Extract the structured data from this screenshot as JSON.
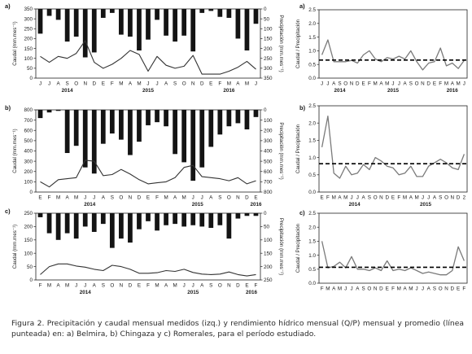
{
  "caption": "Figura 2. Precipitación y caudal mensual medidos (izq.) y rendimiento hídrico mensual (Q/P) mensual y promedio (línea punteada) en: a) Belmira, b) Chingaza y c) Romerales, para el período estudiado.",
  "chart_data": [
    {
      "id": "a-left",
      "type": "bar+line",
      "panel_label": "a)",
      "ylabel": "Caudal (mm.mes⁻¹)",
      "y2label": "Precipitación (mm.mes⁻¹)",
      "ylim": [
        0,
        350
      ],
      "yticks": [
        "0",
        "50",
        "100",
        "150",
        "200",
        "250",
        "300",
        "350"
      ],
      "y2lim": [
        350,
        0
      ],
      "y2ticks": [
        "350",
        "300",
        "250",
        "200",
        "150",
        "100",
        "50",
        "0"
      ],
      "months": [
        "J",
        "J",
        "A",
        "S",
        "O",
        "N",
        "D",
        "E",
        "F",
        "M",
        "A",
        "M",
        "J",
        "J",
        "A",
        "S",
        "O",
        "N",
        "D",
        "E",
        "F",
        "M",
        "A",
        "M",
        "J"
      ],
      "years": [
        {
          "label": "2014",
          "center": 3
        },
        {
          "label": "2015",
          "center": 12
        },
        {
          "label": "2016",
          "center": 21
        }
      ],
      "series": [
        {
          "kind": "bar",
          "values": [
            125,
            35,
            55,
            165,
            140,
            245,
            220,
            45,
            20,
            130,
            140,
            210,
            155,
            55,
            135,
            165,
            135,
            215,
            20,
            10,
            40,
            45,
            150,
            210,
            75
          ]
        },
        {
          "kind": "line",
          "values": [
            110,
            80,
            110,
            100,
            125,
            190,
            80,
            50,
            70,
            100,
            140,
            120,
            35,
            110,
            65,
            50,
            60,
            115,
            20,
            20,
            20,
            35,
            55,
            85,
            45
          ]
        }
      ]
    },
    {
      "id": "a-right",
      "type": "line",
      "panel_label": "a)",
      "ylabel": "Caudal / Precipitación",
      "ylim": [
        0,
        2.5
      ],
      "yticks": [
        "0.0",
        "0.5",
        "1.0",
        "1.5",
        "2.0",
        "2.5"
      ],
      "months": [
        "J",
        "J",
        "A",
        "S",
        "O",
        "N",
        "D",
        "E",
        "F",
        "M",
        "A",
        "M",
        "J",
        "J",
        "A",
        "S",
        "O",
        "N",
        "D",
        "E",
        "F",
        "M",
        "A",
        "M",
        "J"
      ],
      "years": [
        {
          "label": "2014",
          "center": 3
        },
        {
          "label": "2015",
          "center": 12
        },
        {
          "label": "2016",
          "center": 22
        }
      ],
      "mean": 0.66,
      "series": [
        {
          "kind": "line",
          "values": [
            0.85,
            1.4,
            0.6,
            0.6,
            0.6,
            0.65,
            0.55,
            0.85,
            1.0,
            0.7,
            0.6,
            0.75,
            0.7,
            0.8,
            0.7,
            1.0,
            0.6,
            0.3,
            0.55,
            0.6,
            1.1,
            0.45,
            0.55,
            0.35,
            0.65
          ]
        }
      ]
    },
    {
      "id": "b-left",
      "type": "bar+line",
      "panel_label": "b)",
      "ylabel": "Caudal (mm.mes⁻¹)",
      "y2label": "Precipitación (mm.mes⁻¹)",
      "ylim": [
        0,
        800
      ],
      "yticks": [
        "0",
        "100",
        "200",
        "300",
        "400",
        "500",
        "600",
        "700",
        "800"
      ],
      "y2lim": [
        800,
        0
      ],
      "y2ticks": [
        "800",
        "700",
        "600",
        "500",
        "400",
        "300",
        "200",
        "100",
        "0"
      ],
      "months": [
        "E",
        "F",
        "M",
        "A",
        "M",
        "J",
        "J",
        "A",
        "S",
        "O",
        "N",
        "D",
        "E",
        "F",
        "M",
        "A",
        "M",
        "J",
        "J",
        "A",
        "S",
        "O",
        "N",
        "D",
        "E"
      ],
      "years": [
        {
          "label": "2014",
          "center": 5.5
        },
        {
          "label": "2015",
          "center": 17.5
        },
        {
          "label": "2016",
          "center": 24
        }
      ],
      "series": [
        {
          "kind": "bar",
          "values": [
            80,
            25,
            10,
            420,
            350,
            560,
            620,
            330,
            230,
            290,
            440,
            310,
            150,
            120,
            160,
            430,
            510,
            690,
            560,
            360,
            240,
            160,
            130,
            190,
            70
          ]
        },
        {
          "kind": "line",
          "values": [
            100,
            50,
            120,
            130,
            140,
            310,
            300,
            160,
            170,
            220,
            175,
            120,
            80,
            90,
            100,
            140,
            240,
            260,
            150,
            140,
            130,
            110,
            140,
            80,
            110
          ]
        }
      ]
    },
    {
      "id": "b-right",
      "type": "line",
      "panel_label": "b)",
      "ylabel": "Caudal / Precipitación",
      "ylim": [
        0,
        2.5
      ],
      "yticks": [
        "0.0",
        "0.5",
        "1.0",
        "1.5",
        "2.0",
        "2.5"
      ],
      "months": [
        "E",
        "F",
        "M",
        "A",
        "M",
        "J",
        "J",
        "A",
        "S",
        "O",
        "N",
        "D",
        "E",
        "F",
        "M",
        "A",
        "M",
        "J",
        "J",
        "A",
        "S",
        "O",
        "N",
        "D",
        "2"
      ],
      "years": [
        {
          "label": "2014",
          "center": 5.5
        },
        {
          "label": "2015",
          "center": 17.5
        }
      ],
      "mean": 0.82,
      "series": [
        {
          "kind": "line",
          "values": [
            1.3,
            2.2,
            0.55,
            0.4,
            0.75,
            0.5,
            0.55,
            0.8,
            0.65,
            1.0,
            0.9,
            0.75,
            0.7,
            0.5,
            0.55,
            0.75,
            0.45,
            0.45,
            0.75,
            0.85,
            0.95,
            0.85,
            0.7,
            0.65,
            1.1
          ]
        }
      ]
    },
    {
      "id": "c-left",
      "type": "bar+line",
      "panel_label": "c)",
      "ylabel": "Caudal (mm.mes⁻¹)",
      "y2label": "Precipitación (mm.mes⁻¹)",
      "ylim": [
        0,
        250
      ],
      "yticks": [
        "0",
        "50",
        "100",
        "150",
        "200",
        "250"
      ],
      "y2lim": [
        250,
        0
      ],
      "y2ticks": [
        "250",
        "200",
        "150",
        "100",
        "50",
        "0"
      ],
      "months": [
        "F",
        "M",
        "A",
        "M",
        "J",
        "J",
        "A",
        "S",
        "O",
        "N",
        "D",
        "E",
        "F",
        "M",
        "A",
        "M",
        "J",
        "J",
        "A",
        "S",
        "O",
        "N",
        "D",
        "E",
        "F"
      ],
      "years": [
        {
          "label": "2014",
          "center": 5
        },
        {
          "label": "2015",
          "center": 17
        },
        {
          "label": "2016",
          "center": 23.5
        }
      ],
      "series": [
        {
          "kind": "bar",
          "values": [
            15,
            75,
            100,
            75,
            95,
            50,
            70,
            40,
            130,
            95,
            110,
            60,
            30,
            65,
            45,
            40,
            50,
            45,
            50,
            55,
            45,
            95,
            20,
            10,
            10
          ]
        },
        {
          "kind": "line",
          "values": [
            20,
            50,
            60,
            60,
            52,
            48,
            40,
            35,
            55,
            50,
            40,
            25,
            25,
            27,
            35,
            32,
            40,
            28,
            22,
            20,
            22,
            30,
            20,
            15,
            20
          ]
        }
      ]
    },
    {
      "id": "c-right",
      "type": "line",
      "panel_label": "c)",
      "ylabel": "Caudal / Precipitación",
      "ylim": [
        0,
        2.5
      ],
      "yticks": [
        "0.0",
        "0.5",
        "1.0",
        "1.5",
        "2.0",
        "2.5"
      ],
      "months": [
        "F",
        "M",
        "A",
        "M",
        "J",
        "J",
        "A",
        "S",
        "O",
        "N",
        "D",
        "E",
        "F",
        "M",
        "A",
        "M",
        "J",
        "J",
        "A",
        "S",
        "O",
        "N",
        "D",
        "E",
        "F"
      ],
      "years": [],
      "mean": 0.57,
      "series": [
        {
          "kind": "line",
          "values": [
            1.5,
            0.55,
            0.6,
            0.75,
            0.55,
            0.95,
            0.5,
            0.5,
            0.45,
            0.55,
            0.45,
            0.8,
            0.45,
            0.5,
            0.45,
            0.55,
            0.45,
            0.35,
            0.4,
            0.35,
            0.3,
            0.3,
            0.45,
            1.3,
            0.8
          ]
        }
      ]
    }
  ]
}
